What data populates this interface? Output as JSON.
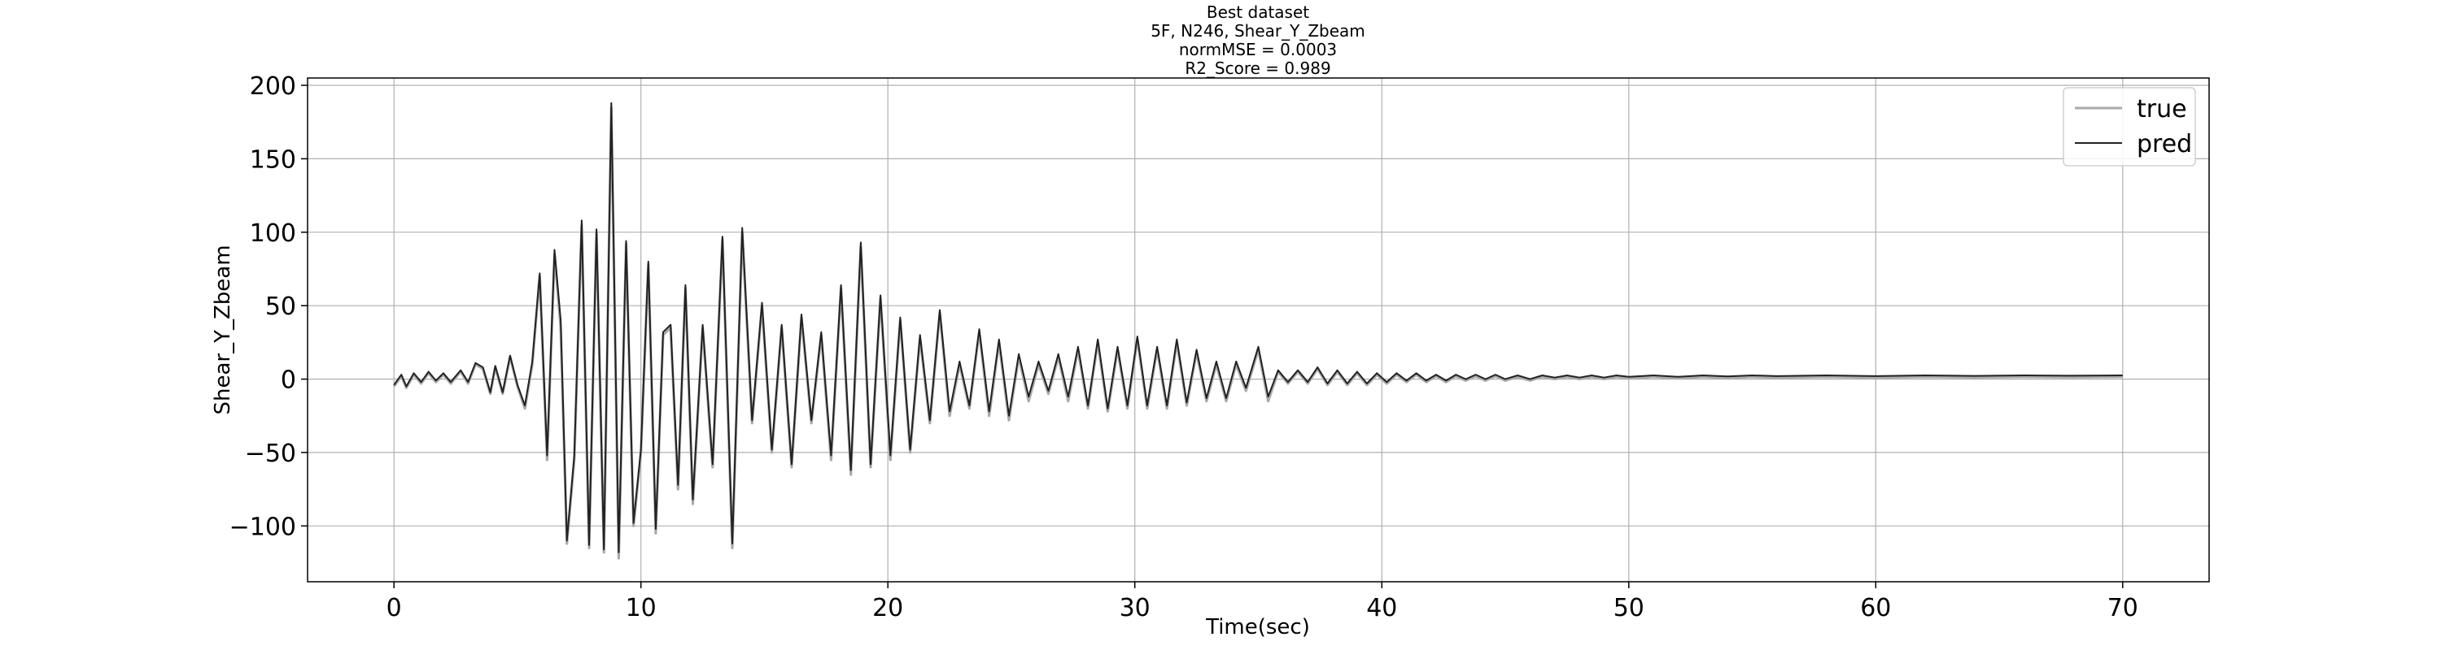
{
  "chart_data": {
    "type": "line",
    "title_lines": [
      "Best dataset",
      "5F, N246, Shear_Y_Zbeam",
      "normMSE = 0.0003",
      "R2_Score = 0.989"
    ],
    "xlabel": "Time(sec)",
    "ylabel": "Shear_Y_Zbeam",
    "xlim": [
      -3.5,
      73.5
    ],
    "ylim": [
      -138,
      205
    ],
    "xticks": [
      0,
      10,
      20,
      30,
      40,
      50,
      60,
      70
    ],
    "yticks": [
      -100,
      -50,
      0,
      50,
      100,
      150,
      200
    ],
    "ytick_labels": [
      "−100",
      "−50",
      "0",
      "50",
      "100",
      "150",
      "200"
    ],
    "grid": true,
    "legend_position": "top-right",
    "series": [
      {
        "name": "true",
        "color": "#aaaaaa",
        "points": [
          [
            0,
            -5
          ],
          [
            0.3,
            2
          ],
          [
            0.5,
            -6
          ],
          [
            0.8,
            3
          ],
          [
            1.1,
            -3
          ],
          [
            1.4,
            4
          ],
          [
            1.7,
            -2
          ],
          [
            2,
            3
          ],
          [
            2.3,
            -3
          ],
          [
            2.7,
            5
          ],
          [
            3,
            -3
          ],
          [
            3.3,
            10
          ],
          [
            3.6,
            7
          ],
          [
            3.9,
            -10
          ],
          [
            4.1,
            8
          ],
          [
            4.4,
            -10
          ],
          [
            4.7,
            15
          ],
          [
            5,
            -5
          ],
          [
            5.3,
            -20
          ],
          [
            5.6,
            10
          ],
          [
            5.9,
            70
          ],
          [
            6.2,
            -55
          ],
          [
            6.5,
            85
          ],
          [
            6.75,
            35
          ],
          [
            7,
            -112
          ],
          [
            7.3,
            -55
          ],
          [
            7.6,
            105
          ],
          [
            7.9,
            -115
          ],
          [
            8.2,
            100
          ],
          [
            8.5,
            -118
          ],
          [
            8.8,
            185
          ],
          [
            9.1,
            -122
          ],
          [
            9.4,
            92
          ],
          [
            9.7,
            -100
          ],
          [
            10,
            -50
          ],
          [
            10.3,
            78
          ],
          [
            10.6,
            -105
          ],
          [
            10.9,
            30
          ],
          [
            11.2,
            35
          ],
          [
            11.5,
            -75
          ],
          [
            11.8,
            62
          ],
          [
            12.1,
            -85
          ],
          [
            12.5,
            35
          ],
          [
            12.9,
            -60
          ],
          [
            13.3,
            95
          ],
          [
            13.7,
            -115
          ],
          [
            14.1,
            100
          ],
          [
            14.5,
            -30
          ],
          [
            14.9,
            50
          ],
          [
            15.3,
            -50
          ],
          [
            15.7,
            35
          ],
          [
            16.1,
            -60
          ],
          [
            16.5,
            42
          ],
          [
            16.9,
            -30
          ],
          [
            17.3,
            30
          ],
          [
            17.7,
            -55
          ],
          [
            18.1,
            62
          ],
          [
            18.5,
            -65
          ],
          [
            18.9,
            90
          ],
          [
            19.3,
            -60
          ],
          [
            19.7,
            55
          ],
          [
            20.1,
            -55
          ],
          [
            20.5,
            40
          ],
          [
            20.9,
            -50
          ],
          [
            21.3,
            28
          ],
          [
            21.7,
            -30
          ],
          [
            22.1,
            45
          ],
          [
            22.5,
            -25
          ],
          [
            22.9,
            10
          ],
          [
            23.3,
            -20
          ],
          [
            23.7,
            32
          ],
          [
            24.1,
            -25
          ],
          [
            24.5,
            25
          ],
          [
            24.9,
            -28
          ],
          [
            25.3,
            15
          ],
          [
            25.7,
            -15
          ],
          [
            26.1,
            10
          ],
          [
            26.5,
            -10
          ],
          [
            26.9,
            15
          ],
          [
            27.3,
            -15
          ],
          [
            27.7,
            20
          ],
          [
            28.1,
            -20
          ],
          [
            28.5,
            25
          ],
          [
            28.9,
            -22
          ],
          [
            29.3,
            20
          ],
          [
            29.7,
            -20
          ],
          [
            30.1,
            27
          ],
          [
            30.5,
            -20
          ],
          [
            30.9,
            20
          ],
          [
            31.3,
            -20
          ],
          [
            31.7,
            25
          ],
          [
            32.1,
            -18
          ],
          [
            32.5,
            18
          ],
          [
            32.9,
            -15
          ],
          [
            33.3,
            10
          ],
          [
            33.7,
            -15
          ],
          [
            34.1,
            10
          ],
          [
            34.5,
            -8
          ],
          [
            35,
            20
          ],
          [
            35.4,
            -15
          ],
          [
            35.8,
            5
          ],
          [
            36.2,
            -3
          ],
          [
            36.6,
            5
          ],
          [
            37,
            -3
          ],
          [
            37.4,
            7
          ],
          [
            37.8,
            -4
          ],
          [
            38.2,
            5
          ],
          [
            38.6,
            -4
          ],
          [
            39,
            4
          ],
          [
            39.4,
            -4
          ],
          [
            39.8,
            3
          ],
          [
            40.2,
            -3
          ],
          [
            40.6,
            3
          ],
          [
            41,
            -2
          ],
          [
            41.4,
            3
          ],
          [
            41.8,
            -2
          ],
          [
            42.2,
            2
          ],
          [
            42.6,
            -2
          ],
          [
            43,
            2
          ],
          [
            43.4,
            -1
          ],
          [
            43.8,
            2
          ],
          [
            44.2,
            -1
          ],
          [
            44.6,
            2
          ],
          [
            45,
            -1
          ],
          [
            45.5,
            1.5
          ],
          [
            46,
            -1
          ],
          [
            46.5,
            1.5
          ],
          [
            47,
            0
          ],
          [
            47.5,
            1.5
          ],
          [
            48,
            0
          ],
          [
            48.5,
            1.5
          ],
          [
            49,
            0
          ],
          [
            49.5,
            1.5
          ],
          [
            50,
            0.5
          ],
          [
            51,
            1.5
          ],
          [
            52,
            0.5
          ],
          [
            53,
            1.5
          ],
          [
            54,
            0.8
          ],
          [
            55,
            1.5
          ],
          [
            56,
            1
          ],
          [
            58,
            1.5
          ],
          [
            60,
            1
          ],
          [
            62,
            1.5
          ],
          [
            64,
            1.2
          ],
          [
            66,
            1.5
          ],
          [
            68,
            1.3
          ],
          [
            70,
            1.5
          ]
        ]
      },
      {
        "name": "pred",
        "color": "#222222",
        "points": [
          [
            0,
            -4
          ],
          [
            0.3,
            3
          ],
          [
            0.5,
            -5
          ],
          [
            0.8,
            4
          ],
          [
            1.1,
            -2
          ],
          [
            1.4,
            5
          ],
          [
            1.7,
            -1
          ],
          [
            2,
            4
          ],
          [
            2.3,
            -2
          ],
          [
            2.7,
            6
          ],
          [
            3,
            -2
          ],
          [
            3.3,
            11
          ],
          [
            3.6,
            8
          ],
          [
            3.9,
            -9
          ],
          [
            4.1,
            9
          ],
          [
            4.4,
            -9
          ],
          [
            4.7,
            16
          ],
          [
            5,
            -4
          ],
          [
            5.3,
            -18
          ],
          [
            5.6,
            12
          ],
          [
            5.9,
            72
          ],
          [
            6.2,
            -52
          ],
          [
            6.5,
            88
          ],
          [
            6.75,
            40
          ],
          [
            7,
            -110
          ],
          [
            7.3,
            -52
          ],
          [
            7.6,
            108
          ],
          [
            7.9,
            -113
          ],
          [
            8.2,
            102
          ],
          [
            8.5,
            -116
          ],
          [
            8.8,
            188
          ],
          [
            9.1,
            -118
          ],
          [
            9.4,
            94
          ],
          [
            9.7,
            -98
          ],
          [
            10,
            -48
          ],
          [
            10.3,
            80
          ],
          [
            10.6,
            -102
          ],
          [
            10.9,
            32
          ],
          [
            11.2,
            37
          ],
          [
            11.5,
            -72
          ],
          [
            11.8,
            64
          ],
          [
            12.1,
            -82
          ],
          [
            12.5,
            37
          ],
          [
            12.9,
            -58
          ],
          [
            13.3,
            97
          ],
          [
            13.7,
            -112
          ],
          [
            14.1,
            103
          ],
          [
            14.5,
            -28
          ],
          [
            14.9,
            52
          ],
          [
            15.3,
            -48
          ],
          [
            15.7,
            37
          ],
          [
            16.1,
            -58
          ],
          [
            16.5,
            44
          ],
          [
            16.9,
            -28
          ],
          [
            17.3,
            32
          ],
          [
            17.7,
            -52
          ],
          [
            18.1,
            64
          ],
          [
            18.5,
            -62
          ],
          [
            18.9,
            93
          ],
          [
            19.3,
            -58
          ],
          [
            19.7,
            57
          ],
          [
            20.1,
            -52
          ],
          [
            20.5,
            42
          ],
          [
            20.9,
            -48
          ],
          [
            21.3,
            30
          ],
          [
            21.7,
            -28
          ],
          [
            22.1,
            47
          ],
          [
            22.5,
            -22
          ],
          [
            22.9,
            12
          ],
          [
            23.3,
            -18
          ],
          [
            23.7,
            34
          ],
          [
            24.1,
            -22
          ],
          [
            24.5,
            27
          ],
          [
            24.9,
            -25
          ],
          [
            25.3,
            17
          ],
          [
            25.7,
            -12
          ],
          [
            26.1,
            12
          ],
          [
            26.5,
            -8
          ],
          [
            26.9,
            17
          ],
          [
            27.3,
            -12
          ],
          [
            27.7,
            22
          ],
          [
            28.1,
            -18
          ],
          [
            28.5,
            27
          ],
          [
            28.9,
            -20
          ],
          [
            29.3,
            22
          ],
          [
            29.7,
            -18
          ],
          [
            30.1,
            29
          ],
          [
            30.5,
            -18
          ],
          [
            30.9,
            22
          ],
          [
            31.3,
            -18
          ],
          [
            31.7,
            27
          ],
          [
            32.1,
            -16
          ],
          [
            32.5,
            20
          ],
          [
            32.9,
            -13
          ],
          [
            33.3,
            12
          ],
          [
            33.7,
            -13
          ],
          [
            34.1,
            12
          ],
          [
            34.5,
            -6
          ],
          [
            35,
            22
          ],
          [
            35.4,
            -12
          ],
          [
            35.8,
            6
          ],
          [
            36.2,
            -2
          ],
          [
            36.6,
            6
          ],
          [
            37,
            -2
          ],
          [
            37.4,
            8
          ],
          [
            37.8,
            -3
          ],
          [
            38.2,
            6
          ],
          [
            38.6,
            -3
          ],
          [
            39,
            5
          ],
          [
            39.4,
            -3
          ],
          [
            39.8,
            4
          ],
          [
            40.2,
            -2
          ],
          [
            40.6,
            4
          ],
          [
            41,
            -1
          ],
          [
            41.4,
            4
          ],
          [
            41.8,
            -1
          ],
          [
            42.2,
            3
          ],
          [
            42.6,
            -1
          ],
          [
            43,
            3
          ],
          [
            43.4,
            0
          ],
          [
            43.8,
            3
          ],
          [
            44.2,
            0
          ],
          [
            44.6,
            3
          ],
          [
            45,
            0
          ],
          [
            45.5,
            2.5
          ],
          [
            46,
            0
          ],
          [
            46.5,
            2.5
          ],
          [
            47,
            1
          ],
          [
            47.5,
            2.5
          ],
          [
            48,
            1
          ],
          [
            48.5,
            2.5
          ],
          [
            49,
            1
          ],
          [
            49.5,
            2.5
          ],
          [
            50,
            1.5
          ],
          [
            51,
            2.5
          ],
          [
            52,
            1.5
          ],
          [
            53,
            2.5
          ],
          [
            54,
            1.8
          ],
          [
            55,
            2.5
          ],
          [
            56,
            2
          ],
          [
            58,
            2.5
          ],
          [
            60,
            2
          ],
          [
            62,
            2.5
          ],
          [
            64,
            2.2
          ],
          [
            66,
            2.5
          ],
          [
            68,
            2.3
          ],
          [
            70,
            2.5
          ]
        ]
      }
    ]
  }
}
